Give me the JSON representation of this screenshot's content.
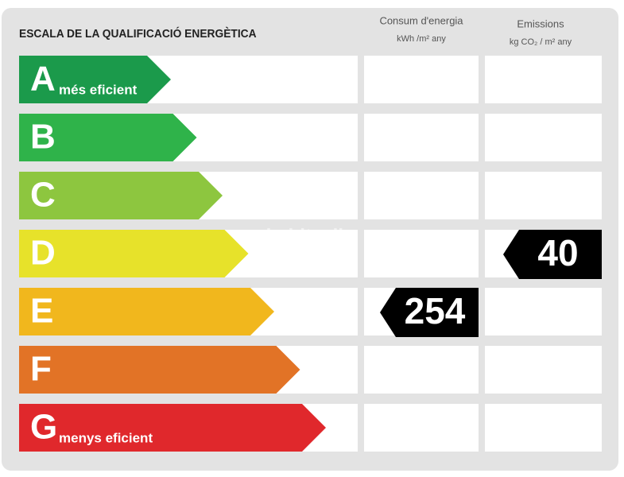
{
  "header": {
    "title": "ESCALA DE LA QUALIFICACIÓ ENERGÈTICA",
    "consumption_title": "Consum d'energia",
    "consumption_unit": "kWh /m² any",
    "emissions_title": "Emissions",
    "emissions_unit": "kg CO₂ / m² any"
  },
  "rows": [
    {
      "letter": "A",
      "label": "més eficient",
      "color": "#1b9a4b"
    },
    {
      "letter": "B",
      "color": "#2fb34a"
    },
    {
      "letter": "C",
      "color": "#8dc63f"
    },
    {
      "letter": "D",
      "color": "#e7e22a",
      "emissions": 40
    },
    {
      "letter": "E",
      "color": "#f1b71d",
      "consumption": 254
    },
    {
      "letter": "F",
      "color": "#e27326"
    },
    {
      "letter": "G",
      "label": "menys eficient",
      "color": "#e0282c"
    }
  ],
  "watermark": "habitaclia"
}
